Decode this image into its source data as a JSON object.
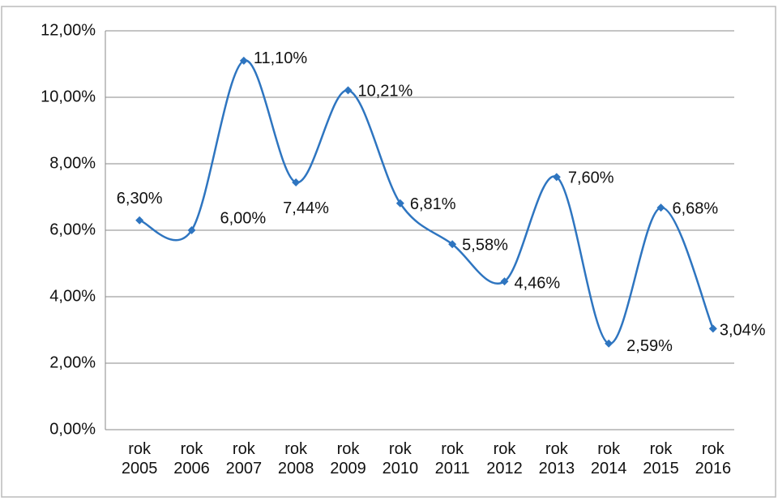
{
  "chart_data": {
    "type": "line",
    "categories": [
      "rok 2005",
      "rok 2006",
      "rok 2007",
      "rok 2008",
      "rok 2009",
      "rok 2010",
      "rok 2011",
      "rok 2012",
      "rok 2013",
      "rok 2014",
      "rok 2015",
      "rok 2016"
    ],
    "series": [
      {
        "color": "#2e75c0",
        "values": [
          6.3,
          6.0,
          11.1,
          7.44,
          10.21,
          6.81,
          5.58,
          4.46,
          7.6,
          2.59,
          6.68,
          3.04
        ],
        "value_labels": [
          "6,30%",
          "6,00%",
          "11,10%",
          "7,44%",
          "10,21%",
          "6,81%",
          "5,58%",
          "4,46%",
          "7,60%",
          "2,59%",
          "6,68%",
          "3,04%"
        ]
      }
    ],
    "ylim": [
      0,
      12
    ],
    "yticks": [
      {
        "value": 0,
        "label": "0,00%"
      },
      {
        "value": 2,
        "label": "2,00%"
      },
      {
        "value": 4,
        "label": "4,00%"
      },
      {
        "value": 6,
        "label": "6,00%"
      },
      {
        "value": 8,
        "label": "8,00%"
      },
      {
        "value": 10,
        "label": "10,00%"
      },
      {
        "value": 12,
        "label": "12,00%"
      }
    ],
    "grid": true,
    "smooth": true
  }
}
